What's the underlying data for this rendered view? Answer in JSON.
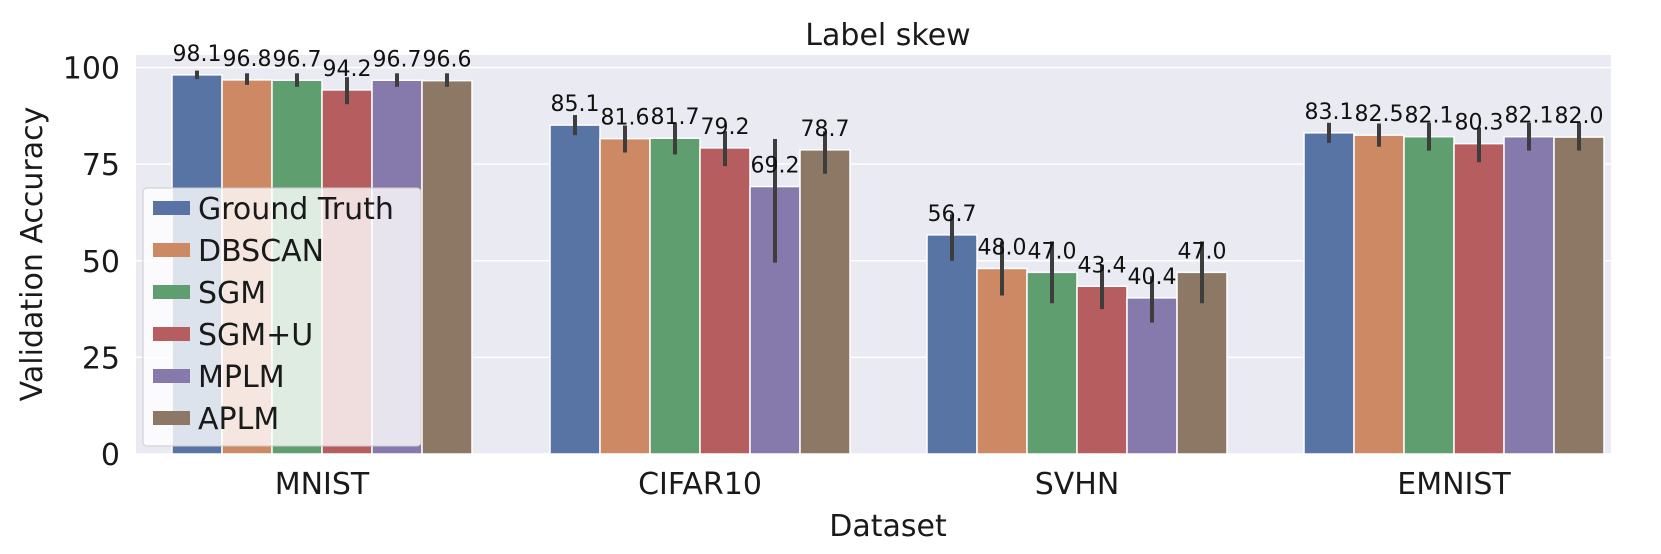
{
  "chart_data": {
    "type": "bar",
    "title": "Label skew",
    "xlabel": "Dataset",
    "ylabel": "Validation Accuracy",
    "categories": [
      "MNIST",
      "CIFAR10",
      "SVHN",
      "EMNIST"
    ],
    "ylim": [
      0,
      100
    ],
    "yticks": [
      0,
      25,
      50,
      75,
      100
    ],
    "grid": true,
    "legend_position": "center-left",
    "series": [
      {
        "name": "Ground Truth",
        "color": "#5874a5",
        "values": [
          98.1,
          85.1,
          56.7,
          83.1
        ],
        "error_low": [
          97.0,
          82.5,
          50.0,
          80.5
        ],
        "error_high": [
          99.2,
          87.7,
          62.0,
          85.7
        ]
      },
      {
        "name": "DBSCAN",
        "color": "#cc8963",
        "values": [
          96.8,
          81.6,
          48.0,
          82.5
        ],
        "error_low": [
          95.5,
          78.0,
          41.0,
          79.5
        ],
        "error_high": [
          98.5,
          85.0,
          55.0,
          85.5
        ]
      },
      {
        "name": "SGM",
        "color": "#5f9e6f",
        "values": [
          96.7,
          81.7,
          47.0,
          82.1
        ],
        "error_low": [
          95.0,
          77.5,
          39.0,
          78.5
        ],
        "error_high": [
          98.5,
          85.5,
          55.0,
          85.7
        ]
      },
      {
        "name": "SGM+U",
        "color": "#b65d60",
        "values": [
          94.2,
          79.2,
          43.4,
          80.3
        ],
        "error_low": [
          90.5,
          74.5,
          37.5,
          75.5
        ],
        "error_high": [
          97.5,
          83.5,
          49.0,
          84.5
        ]
      },
      {
        "name": "MPLM",
        "color": "#857aab",
        "values": [
          96.7,
          69.2,
          40.4,
          82.1
        ],
        "error_low": [
          95.0,
          49.5,
          34.0,
          78.5
        ],
        "error_high": [
          98.5,
          81.5,
          46.0,
          85.7
        ]
      },
      {
        "name": "APLM",
        "color": "#8d7866",
        "values": [
          96.6,
          78.7,
          47.0,
          82.0
        ],
        "error_low": [
          95.0,
          72.5,
          39.0,
          78.5
        ],
        "error_high": [
          98.5,
          83.5,
          55.0,
          85.7
        ]
      }
    ],
    "data_labels": [
      [
        "98.1",
        "96.8",
        "96.7",
        "94.2",
        "96.7",
        "96.6"
      ],
      [
        "85.1",
        "81.6",
        "81.7",
        "79.2",
        "69.2",
        "78.7"
      ],
      [
        "56.7",
        "48.0",
        "47.0",
        "43.4",
        "40.4",
        "47.0"
      ],
      [
        "83.1",
        "82.5",
        "82.1",
        "80.3",
        "82.1",
        "82.0"
      ]
    ]
  }
}
